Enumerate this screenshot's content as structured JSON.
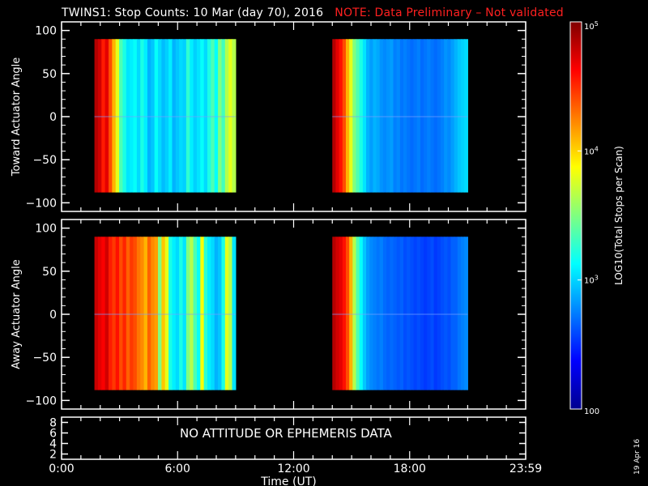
{
  "title": {
    "main": "TWINS1: Stop Counts: 10 Mar (day  70), 2016",
    "note": "NOTE: Data Preliminary – Not validated",
    "note_color": "#ff2020"
  },
  "message": "NO ATTITUDE OR EPHEMERIS DATA",
  "date_stamp": "19 Apr 16",
  "colorbar": {
    "label": "LOG10(Total Stops per Scan)",
    "scale": "log",
    "range": [
      100,
      100000
    ],
    "tick_labels": [
      "100",
      "10^3",
      "10^4",
      "10^5"
    ],
    "colormap": "jet"
  },
  "chart_data": [
    {
      "type": "heatmap",
      "panel": "toward",
      "ylabel": "Toward Actuator Angle",
      "ylim": [
        -110,
        110
      ],
      "yticks": [
        "100",
        "50",
        "0",
        "−50",
        "−100"
      ],
      "xlim_hours": [
        0,
        24
      ],
      "data_extent": {
        "angle": [
          -88,
          90
        ]
      },
      "segments": [
        {
          "time_hours": [
            1.7,
            9.0
          ],
          "level_profile": [
            0.95,
            0.92,
            0.85,
            0.9,
            0.8,
            0.7,
            0.6,
            0.45,
            0.4,
            0.35,
            0.36,
            0.38,
            0.34,
            0.4,
            0.36,
            0.3,
            0.32,
            0.38,
            0.34,
            0.31,
            0.33,
            0.36,
            0.3,
            0.32,
            0.34,
            0.33,
            0.42,
            0.36,
            0.33,
            0.35,
            0.38,
            0.34,
            0.4,
            0.45,
            0.38,
            0.5,
            0.44,
            0.55,
            0.6,
            0.55
          ]
        },
        {
          "time_hours": [
            14.0,
            21.0
          ],
          "level_profile": [
            0.95,
            0.9,
            0.86,
            0.8,
            0.7,
            0.6,
            0.5,
            0.45,
            0.4,
            0.35,
            0.3,
            0.28,
            0.3,
            0.29,
            0.27,
            0.26,
            0.27,
            0.28,
            0.25,
            0.26,
            0.24,
            0.25,
            0.24,
            0.23,
            0.24,
            0.25,
            0.23,
            0.24,
            0.25,
            0.24,
            0.23,
            0.24,
            0.25,
            0.27,
            0.26,
            0.28,
            0.3,
            0.32,
            0.33,
            0.34
          ]
        }
      ]
    },
    {
      "type": "heatmap",
      "panel": "away",
      "ylabel": "Away Actuator Angle",
      "ylim": [
        -110,
        110
      ],
      "yticks": [
        "100",
        "50",
        "0",
        "−50",
        "−100"
      ],
      "xlim_hours": [
        0,
        24
      ],
      "data_extent": {
        "angle": [
          -88,
          90
        ]
      },
      "segments": [
        {
          "time_hours": [
            1.7,
            9.0
          ],
          "level_profile": [
            0.93,
            0.9,
            0.88,
            0.92,
            0.85,
            0.82,
            0.86,
            0.8,
            0.84,
            0.78,
            0.82,
            0.8,
            0.76,
            0.74,
            0.7,
            0.78,
            0.74,
            0.72,
            0.5,
            0.68,
            0.6,
            0.4,
            0.36,
            0.34,
            0.4,
            0.35,
            0.5,
            0.55,
            0.45,
            0.38,
            0.62,
            0.42,
            0.36,
            0.34,
            0.3,
            0.32,
            0.4,
            0.6,
            0.55,
            0.35
          ]
        },
        {
          "time_hours": [
            14.0,
            21.0
          ],
          "level_profile": [
            0.95,
            0.92,
            0.9,
            0.86,
            0.8,
            0.7,
            0.55,
            0.45,
            0.38,
            0.32,
            0.28,
            0.26,
            0.25,
            0.24,
            0.25,
            0.23,
            0.22,
            0.23,
            0.22,
            0.21,
            0.22,
            0.2,
            0.21,
            0.2,
            0.19,
            0.2,
            0.19,
            0.18,
            0.19,
            0.2,
            0.18,
            0.19,
            0.2,
            0.21,
            0.2,
            0.22,
            0.22,
            0.24,
            0.25,
            0.26
          ]
        }
      ]
    },
    {
      "type": "line",
      "panel": "attitude",
      "yticks": [
        "8",
        "6",
        "4",
        "2"
      ],
      "ylim": [
        1,
        9
      ],
      "xlim_hours": [
        0,
        24
      ],
      "xticks": [
        "0:00",
        "6:00",
        "12:00",
        "18:00",
        "23:59"
      ],
      "xlabel": "Time (UT)",
      "series": []
    }
  ]
}
